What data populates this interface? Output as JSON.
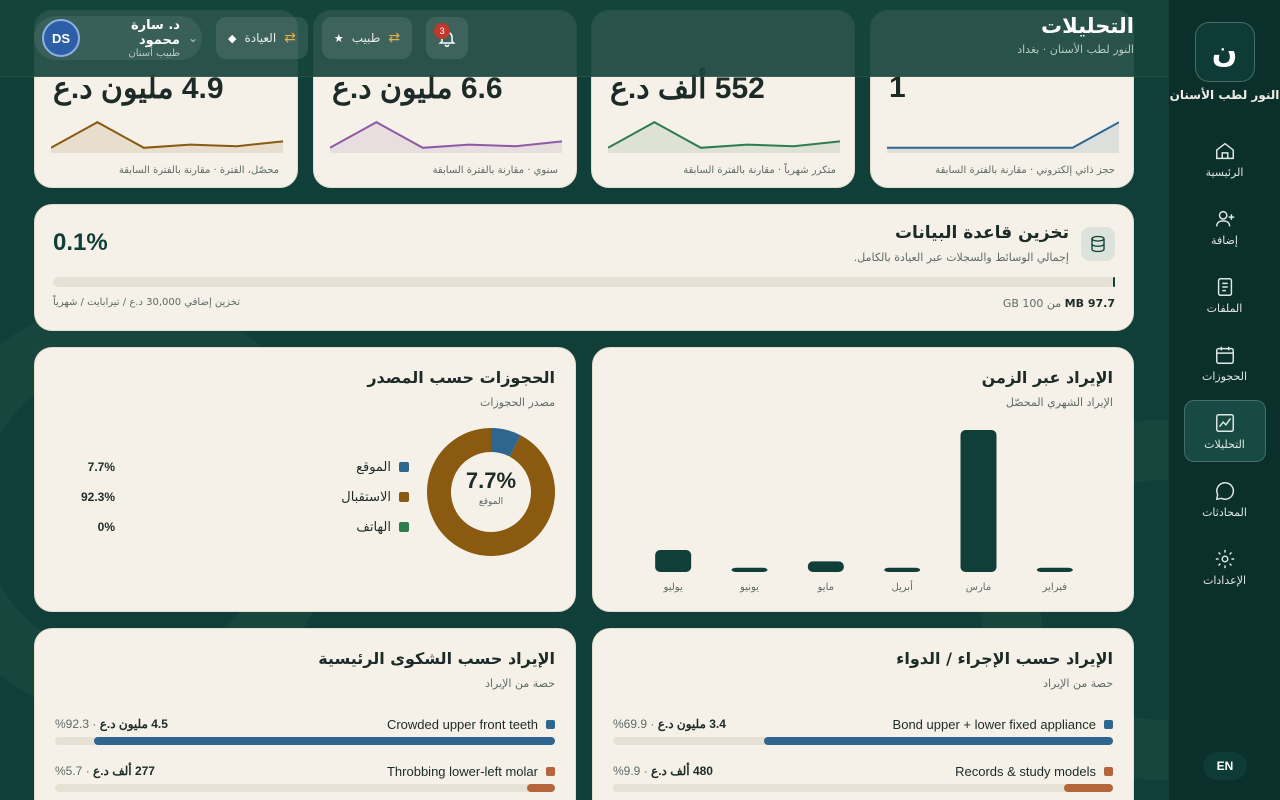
{
  "app": {
    "name": "النور لطب الأسنان",
    "logo_letter": "ن"
  },
  "page": {
    "title": "التحليلات",
    "subtitle": "النور لطب الأسنان · بغداد"
  },
  "header": {
    "notifications_count": "3",
    "role_pill": "طبيب",
    "clinic_pill": "العيادة",
    "user": {
      "initials": "DS",
      "name": "د. سارة محمود",
      "role": "طبيب أسنان"
    }
  },
  "nav": [
    {
      "label": "الرئيسية",
      "icon": "home-icon"
    },
    {
      "label": "إضافة",
      "icon": "user-plus-icon"
    },
    {
      "label": "الملفات",
      "icon": "file-icon"
    },
    {
      "label": "الحجوزات",
      "icon": "calendar-icon"
    },
    {
      "label": "التحليلات",
      "icon": "chart-icon",
      "active": true
    },
    {
      "label": "المحادثات",
      "icon": "chat-icon"
    },
    {
      "label": "الإعدادات",
      "icon": "gear-icon"
    }
  ],
  "lang_toggle": "EN",
  "kpis": [
    {
      "value": "1",
      "note": "حجز ذاتي إلكتروني · مقارنة بالفترة السابقة",
      "color": "#2f6690",
      "spark": [
        0.1,
        0.1,
        0.1,
        0.1,
        0.1,
        0.9
      ]
    },
    {
      "value": "552 ألف د.ع",
      "note": "متكرر شهرياً · مقارنة بالفترة السابقة",
      "color": "#2e7d4f",
      "spark": [
        0.1,
        0.9,
        0.1,
        0.2,
        0.15,
        0.3
      ]
    },
    {
      "value": "6.6 مليون د.ع",
      "note": "سنوي · مقارنة بالفترة السابقة",
      "color": "#8e5aa6",
      "spark": [
        0.1,
        0.9,
        0.1,
        0.2,
        0.15,
        0.3
      ]
    },
    {
      "value": "4.9 مليون د.ع",
      "note": "محصّل، الفترة · مقارنة بالفترة السابقة",
      "color": "#8a5a10",
      "spark": [
        0.1,
        0.9,
        0.1,
        0.2,
        0.15,
        0.3
      ]
    }
  ],
  "storage": {
    "title": "تخزين قاعدة البيانات",
    "subtitle": "إجمالي الوسائط والسجلات عبر العيادة بالكامل.",
    "percent_label": "0.1%",
    "percent": 0.1,
    "used": "97.7 MB",
    "of_total": "من 100 GB",
    "extra": "تخزين إضافي 30,000 د.ع / تيرابايت / شهرياً"
  },
  "revenue_chart": {
    "title": "الإيراد عبر الزمن",
    "subtitle": "الإيراد الشهري المحصّل"
  },
  "chart_data": [
    {
      "type": "bar",
      "categories": [
        "فبراير",
        "مارس",
        "أبريل",
        "مايو",
        "يونيو",
        "يوليو"
      ],
      "values": [
        0.12,
        4.0,
        0.12,
        0.3,
        0.12,
        0.62
      ],
      "ylim": [
        0,
        4.0
      ]
    },
    {
      "type": "pie",
      "labels": [
        "الموقع",
        "الاستقبال",
        "الهاتف"
      ],
      "values": [
        7.7,
        92.3,
        0
      ],
      "colors": [
        "#2f6690",
        "#8a5a10",
        "#2e7d4f"
      ]
    }
  ],
  "source_chart": {
    "title": "الحجوزات حسب المصدر",
    "subtitle": "مصدر الحجوزات",
    "center_value": "7.7%",
    "center_label": "الموقع",
    "pcts": [
      "7.7%",
      "92.3%",
      "0%"
    ]
  },
  "procedure_rev": {
    "title": "الإيراد حسب الإجراء / الدواء",
    "subtitle": "حصة من الإيراد",
    "rows": [
      {
        "label": "Bond upper + lower fixed appliance",
        "amount": "3.4 مليون د.ع",
        "pct": "69.9%",
        "value": 69.9,
        "color": "#2f6690"
      },
      {
        "label": "Records & study models",
        "amount": "480 ألف د.ع",
        "pct": "9.9%",
        "value": 9.9,
        "color": "#b5653a"
      }
    ]
  },
  "complaint_rev": {
    "title": "الإيراد حسب الشكوى الرئيسية",
    "subtitle": "حصة من الإيراد",
    "rows": [
      {
        "label": "Crowded upper front teeth",
        "amount": "4.5 مليون د.ع",
        "pct": "92.3%",
        "value": 92.3,
        "color": "#2f6690"
      },
      {
        "label": "Throbbing lower-left molar",
        "amount": "277 ألف د.ع",
        "pct": "5.7%",
        "value": 5.7,
        "color": "#b5653a"
      }
    ]
  }
}
